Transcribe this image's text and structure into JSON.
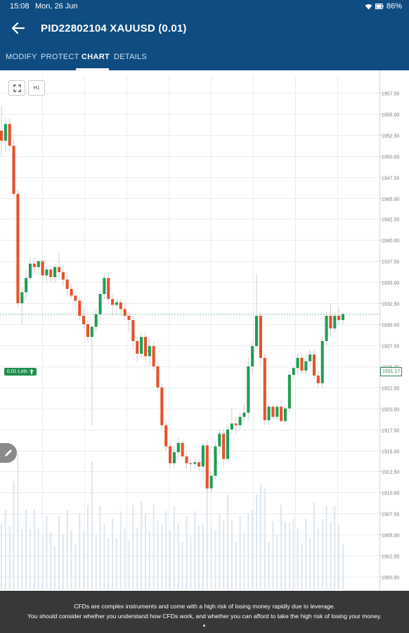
{
  "status_bar": {
    "time": "15:08",
    "date": "Mon, 26 Jun",
    "battery": "86%"
  },
  "app_bar": {
    "title": "PID22802104 XAUUSD (0.01)"
  },
  "tabs": [
    {
      "label": "MODIFY",
      "active": false
    },
    {
      "label": "PROTECT",
      "active": false
    },
    {
      "label": "CHART",
      "active": true
    },
    {
      "label": "DETAILS",
      "active": false
    }
  ],
  "chart_controls": {
    "timeframe": "H1"
  },
  "position": {
    "lots_label": "0.01 Lots",
    "price_tag": "1931.17"
  },
  "colors": {
    "brand": "#0f4c81",
    "up": "#1f9d55",
    "down": "#e8512a",
    "grid": "#ececec",
    "volume": "#dde7f0"
  },
  "chart_data": {
    "type": "candlestick",
    "timeframe": "H1",
    "y_axis_ticks": [
      1957.5,
      1955.0,
      1952.5,
      1950.0,
      1947.5,
      1945.0,
      1942.5,
      1940.0,
      1937.5,
      1935.0,
      1932.5,
      1930.0,
      1927.5,
      1925.0,
      1922.5,
      1920.0,
      1917.5,
      1915.0,
      1912.5,
      1910.0,
      1907.5,
      1905.0,
      1902.5,
      1900.0
    ],
    "y_range": [
      1898.5,
      1959.5
    ],
    "position_price": 1931.17,
    "candles_ohlc": [
      [
        1953.0,
        1956.0,
        1950.0,
        1951.8
      ],
      [
        1951.8,
        1954.5,
        1950.5,
        1953.8
      ],
      [
        1953.8,
        1954.5,
        1950.5,
        1951.2
      ],
      [
        1951.2,
        1952.0,
        1945.0,
        1945.5
      ],
      [
        1945.5,
        1946.0,
        1932.0,
        1932.5
      ],
      [
        1932.5,
        1934.5,
        1930.0,
        1933.8
      ],
      [
        1933.8,
        1936.5,
        1933.0,
        1935.5
      ],
      [
        1935.5,
        1938.0,
        1935.0,
        1937.2
      ],
      [
        1937.2,
        1938.0,
        1936.0,
        1936.8
      ],
      [
        1936.8,
        1937.5,
        1936.0,
        1937.5
      ],
      [
        1937.5,
        1938.0,
        1935.0,
        1935.8
      ],
      [
        1935.8,
        1937.0,
        1935.0,
        1936.5
      ],
      [
        1936.5,
        1937.0,
        1935.0,
        1935.6
      ],
      [
        1935.6,
        1937.2,
        1935.0,
        1936.8
      ],
      [
        1936.8,
        1938.5,
        1935.5,
        1936.2
      ],
      [
        1936.2,
        1937.0,
        1934.5,
        1935.3
      ],
      [
        1935.3,
        1935.8,
        1933.5,
        1934.2
      ],
      [
        1934.2,
        1934.8,
        1933.0,
        1933.4
      ],
      [
        1933.4,
        1934.0,
        1932.0,
        1932.8
      ],
      [
        1932.8,
        1933.2,
        1930.5,
        1931.0
      ],
      [
        1931.0,
        1932.0,
        1929.5,
        1930.0
      ],
      [
        1930.0,
        1930.5,
        1928.0,
        1928.5
      ],
      [
        1928.5,
        1930.0,
        1918.0,
        1929.7
      ],
      [
        1929.7,
        1932.0,
        1929.0,
        1931.2
      ],
      [
        1931.2,
        1934.0,
        1930.5,
        1933.6
      ],
      [
        1933.6,
        1936.0,
        1933.0,
        1935.5
      ],
      [
        1935.5,
        1936.0,
        1932.5,
        1933.0
      ],
      [
        1933.0,
        1933.5,
        1931.0,
        1932.3
      ],
      [
        1932.3,
        1933.0,
        1931.2,
        1932.6
      ],
      [
        1932.6,
        1933.0,
        1931.0,
        1931.8
      ],
      [
        1931.8,
        1932.5,
        1930.5,
        1931.0
      ],
      [
        1931.0,
        1931.5,
        1929.0,
        1930.5
      ],
      [
        1930.5,
        1931.0,
        1927.0,
        1928.0
      ],
      [
        1928.0,
        1928.5,
        1925.5,
        1926.5
      ],
      [
        1926.5,
        1929.0,
        1926.0,
        1928.5
      ],
      [
        1928.5,
        1929.0,
        1925.5,
        1926.2
      ],
      [
        1926.2,
        1928.5,
        1925.0,
        1927.4
      ],
      [
        1927.4,
        1928.0,
        1924.5,
        1925.0
      ],
      [
        1925.0,
        1925.5,
        1922.0,
        1922.5
      ],
      [
        1922.5,
        1923.0,
        1917.5,
        1918.0
      ],
      [
        1918.0,
        1918.5,
        1915.0,
        1915.5
      ],
      [
        1915.5,
        1916.0,
        1913.0,
        1913.5
      ],
      [
        1913.5,
        1915.5,
        1912.8,
        1914.8
      ],
      [
        1914.8,
        1916.5,
        1914.0,
        1915.9
      ],
      [
        1915.9,
        1916.2,
        1914.0,
        1914.3
      ],
      [
        1914.3,
        1915.0,
        1912.8,
        1913.5
      ],
      [
        1913.5,
        1914.0,
        1912.5,
        1913.4
      ],
      [
        1913.4,
        1914.2,
        1912.8,
        1913.6
      ],
      [
        1913.6,
        1914.0,
        1912.5,
        1913.1
      ],
      [
        1913.1,
        1916.0,
        1911.5,
        1915.6
      ],
      [
        1915.6,
        1916.2,
        1910.0,
        1910.5
      ],
      [
        1910.5,
        1912.5,
        1910.0,
        1912.0
      ],
      [
        1912.0,
        1916.0,
        1911.5,
        1915.5
      ],
      [
        1915.5,
        1917.5,
        1914.5,
        1917.0
      ],
      [
        1917.0,
        1917.5,
        1913.0,
        1914.0
      ],
      [
        1914.0,
        1918.0,
        1913.5,
        1917.5
      ],
      [
        1917.5,
        1920.0,
        1917.0,
        1918.2
      ],
      [
        1918.2,
        1919.0,
        1917.0,
        1918.0
      ],
      [
        1918.0,
        1919.5,
        1917.5,
        1919.0
      ],
      [
        1919.0,
        1920.5,
        1918.5,
        1919.5
      ],
      [
        1919.5,
        1926.0,
        1918.5,
        1925.0
      ],
      [
        1925.0,
        1928.0,
        1924.0,
        1927.4
      ],
      [
        1927.4,
        1936.0,
        1927.0,
        1931.0
      ],
      [
        1931.0,
        1931.5,
        1925.0,
        1926.0
      ],
      [
        1926.0,
        1926.5,
        1918.0,
        1918.6
      ],
      [
        1918.6,
        1920.5,
        1918.0,
        1920.2
      ],
      [
        1920.2,
        1920.5,
        1918.8,
        1919.0
      ],
      [
        1919.0,
        1920.5,
        1918.5,
        1920.2
      ],
      [
        1920.2,
        1921.0,
        1918.3,
        1918.5
      ],
      [
        1918.5,
        1920.5,
        1918.0,
        1920.0
      ],
      [
        1920.0,
        1924.5,
        1919.5,
        1924.0
      ],
      [
        1924.0,
        1925.0,
        1923.5,
        1924.8
      ],
      [
        1924.8,
        1926.5,
        1924.0,
        1926.0
      ],
      [
        1926.0,
        1926.5,
        1924.0,
        1924.5
      ],
      [
        1924.5,
        1926.5,
        1924.0,
        1925.6
      ],
      [
        1925.6,
        1927.0,
        1925.0,
        1926.4
      ],
      [
        1926.4,
        1927.0,
        1923.5,
        1923.9
      ],
      [
        1923.9,
        1924.5,
        1922.5,
        1923.0
      ],
      [
        1923.0,
        1928.5,
        1922.5,
        1928.0
      ],
      [
        1928.0,
        1931.5,
        1927.5,
        1931.0
      ],
      [
        1931.0,
        1932.5,
        1928.5,
        1929.5
      ],
      [
        1929.5,
        1931.5,
        1929.0,
        1931.0
      ],
      [
        1931.0,
        1932.0,
        1930.0,
        1930.5
      ],
      [
        1930.5,
        1931.5,
        1930.0,
        1931.2
      ]
    ]
  },
  "disclaimer": {
    "line1": "CFDs are complex instruments and come with a high risk of losing money rapidly due to leverage.",
    "line2": "You should consider whether you understand how CFDs work, and whether you can afford to take the high risk of losing your money."
  }
}
